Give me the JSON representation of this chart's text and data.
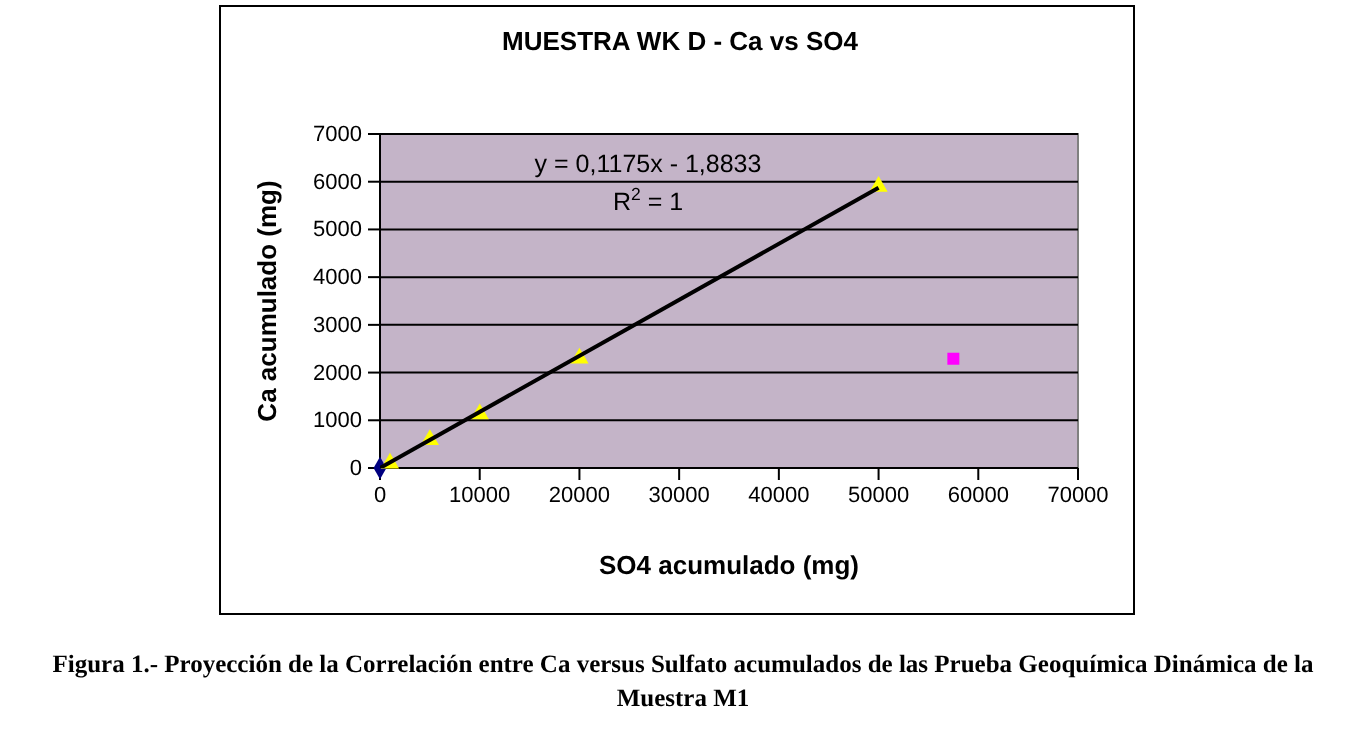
{
  "chart_data": {
    "type": "scatter",
    "title": "MUESTRA WK D - Ca vs SO4",
    "xlabel": "SO4 acumulado (mg)",
    "ylabel": "Ca acumulado (mg)",
    "xlim": [
      0,
      70000
    ],
    "xticks": [
      0,
      10000,
      20000,
      30000,
      40000,
      50000,
      60000,
      70000
    ],
    "ylim": [
      0,
      7000
    ],
    "yticks": [
      0,
      1000,
      2000,
      3000,
      4000,
      5000,
      6000,
      7000
    ],
    "grid": "y",
    "series": [
      {
        "color": "#000080",
        "marker": "diamond",
        "x": [
          0
        ],
        "values": [
          0
        ]
      },
      {
        "color": "#ffff00",
        "marker": "triangle",
        "x": [
          1000,
          5000,
          10000,
          20000,
          50000
        ],
        "values": [
          100,
          590,
          1130,
          2300,
          5900
        ]
      },
      {
        "color": "#ff00ff",
        "marker": "square",
        "x": [
          57500
        ],
        "values": [
          2290
        ]
      },
      {
        "type": "line",
        "color": "#000000",
        "marker": "none",
        "x": [
          0,
          50000
        ],
        "values": [
          0,
          5875
        ]
      }
    ],
    "annotations": [
      "y = 0,1175x - 1,8833",
      "R$^{2}$ = 1",
      "Figura 1.- Proyección de la Correlación entre Ca versus Sulfato acumulados de las Prueba Geoquímica Dinámica de la Muestra M1"
    ]
  }
}
